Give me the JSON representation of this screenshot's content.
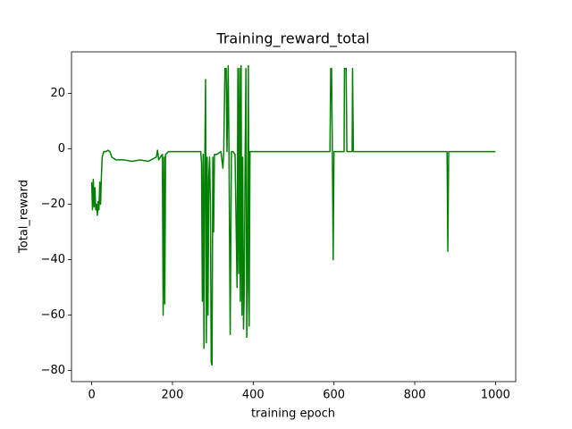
{
  "chart_data": {
    "type": "line",
    "title": "Training_reward_total",
    "xlabel": "training epoch",
    "ylabel": "Total_reward",
    "color": "#008000",
    "xlim": [
      -50,
      1050
    ],
    "ylim": [
      -84,
      35
    ],
    "xticks": [
      0,
      200,
      400,
      600,
      800,
      1000
    ],
    "yticks": [
      {
        "value": -80,
        "label": "−80"
      },
      {
        "value": -60,
        "label": "−60"
      },
      {
        "value": -40,
        "label": "−40"
      },
      {
        "value": -20,
        "label": "−20"
      },
      0,
      20
    ],
    "x": [
      0,
      2,
      4,
      6,
      8,
      10,
      12,
      14,
      16,
      18,
      20,
      22,
      24,
      26,
      30,
      35,
      40,
      45,
      50,
      55,
      60,
      80,
      100,
      120,
      140,
      160,
      163,
      166,
      170,
      175,
      177,
      179,
      181,
      183,
      190,
      200,
      220,
      260,
      270,
      272,
      274,
      276,
      278,
      280,
      282,
      284,
      286,
      288,
      290,
      292,
      294,
      296,
      298,
      300,
      302,
      304,
      310,
      320,
      325,
      327,
      330,
      333,
      335,
      338,
      340,
      343,
      346,
      350,
      355,
      360,
      362,
      364,
      366,
      368,
      370,
      372,
      374,
      376,
      378,
      380,
      382,
      384,
      386,
      388,
      390,
      392,
      400,
      500,
      590,
      592,
      594,
      596,
      598,
      600,
      625,
      626,
      630,
      632,
      645,
      646,
      648,
      700,
      800,
      880,
      882,
      884,
      900,
      1000
    ],
    "values": [
      -12,
      -22,
      -11,
      -21,
      -14,
      -22,
      -20,
      -24,
      -19,
      -22,
      -12,
      -20,
      -10,
      -3,
      -1,
      -1,
      -0.5,
      -1,
      -3,
      -3.5,
      -4,
      -4,
      -4.5,
      -4,
      -4.5,
      -3,
      -0.5,
      -4,
      -3,
      -2,
      -60,
      -3,
      -56,
      -2,
      -1,
      -1,
      -1,
      -1,
      -1,
      -5,
      -55,
      -2,
      -72,
      -6,
      25,
      -70,
      -3,
      -60,
      -10,
      -3,
      -20,
      -77,
      -78,
      -3,
      -30,
      -2,
      -2,
      -1,
      -7,
      -1,
      29,
      29,
      -1,
      30,
      -1,
      -67,
      -1,
      -1,
      -2,
      -50,
      29,
      -45,
      29,
      -55,
      30,
      -60,
      -3,
      -65,
      -50,
      -3,
      29,
      -68,
      -50,
      30,
      -64,
      -1,
      -1,
      -1,
      -1,
      29,
      29,
      -1,
      -40,
      -1,
      -1,
      29,
      29,
      -1,
      -1,
      29,
      -1,
      -1,
      -1,
      -1,
      -37,
      -1,
      -1,
      -1
    ]
  }
}
